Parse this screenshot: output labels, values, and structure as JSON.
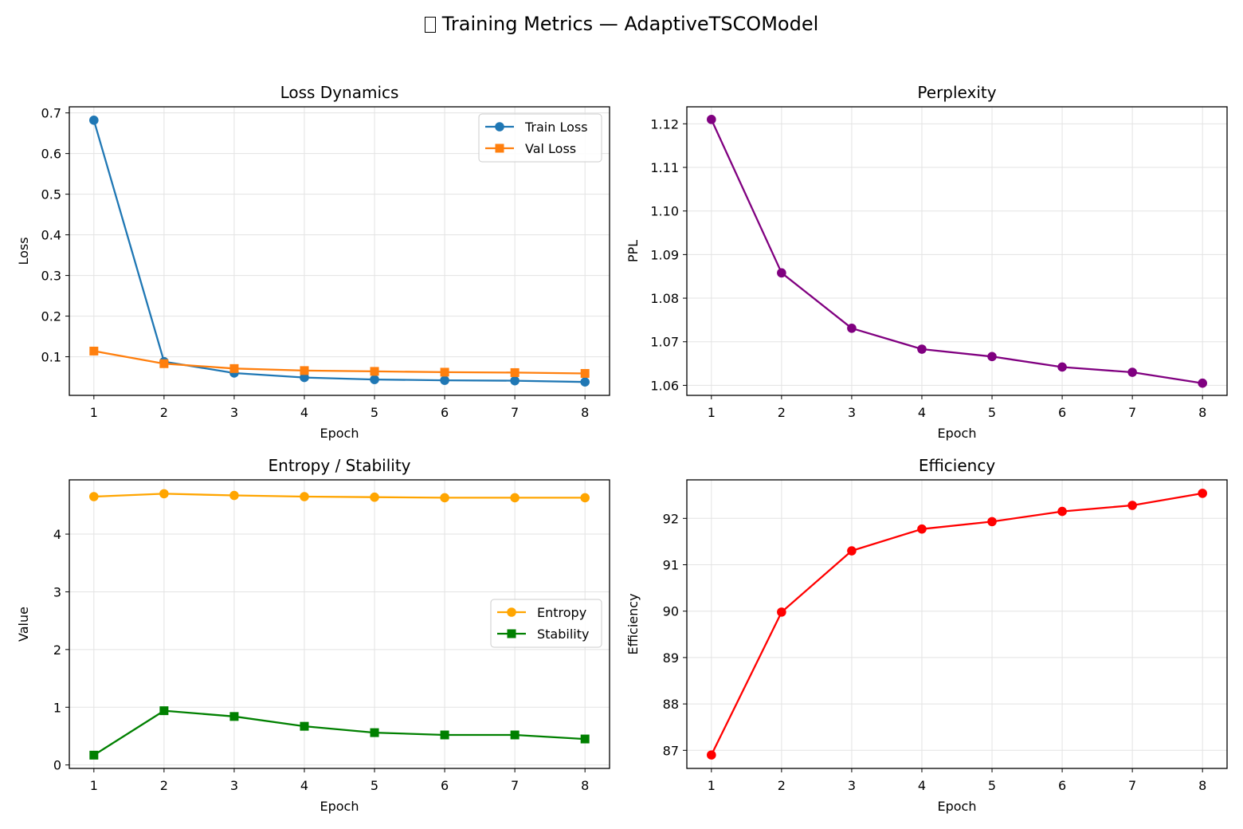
{
  "figure": {
    "title": "Training Metrics — AdaptiveTSCOModel",
    "title_icon": "chart-emoji-icon (rendered as missing-glyph box)"
  },
  "chart_data": [
    {
      "type": "line",
      "title": "Loss Dynamics",
      "xlabel": "Epoch",
      "ylabel": "Loss",
      "x": [
        1,
        2,
        3,
        4,
        5,
        6,
        7,
        8
      ],
      "xlim": [
        0.65,
        8.35
      ],
      "ylim": [
        0.005,
        0.715
      ],
      "yticks": [
        0.1,
        0.2,
        0.3,
        0.4,
        0.5,
        0.6,
        0.7
      ],
      "ytick_labels": [
        "0.1",
        "0.2",
        "0.3",
        "0.4",
        "0.5",
        "0.6",
        "0.7"
      ],
      "grid": true,
      "legend": "upper right",
      "series": [
        {
          "name": "Train Loss",
          "values": [
            0.682,
            0.088,
            0.06,
            0.049,
            0.044,
            0.042,
            0.041,
            0.038
          ],
          "color": "#1f77b4",
          "marker": "circle"
        },
        {
          "name": "Val Loss",
          "values": [
            0.114,
            0.083,
            0.071,
            0.066,
            0.064,
            0.062,
            0.061,
            0.059
          ],
          "color": "#ff7f0e",
          "marker": "square"
        }
      ]
    },
    {
      "type": "line",
      "title": "Perplexity",
      "xlabel": "Epoch",
      "ylabel": "PPL",
      "x": [
        1,
        2,
        3,
        4,
        5,
        6,
        7,
        8
      ],
      "xlim": [
        0.65,
        8.35
      ],
      "ylim": [
        1.0577,
        1.1239
      ],
      "yticks": [
        1.06,
        1.07,
        1.08,
        1.09,
        1.1,
        1.11,
        1.12
      ],
      "ytick_labels": [
        "1.06",
        "1.07",
        "1.08",
        "1.09",
        "1.10",
        "1.11",
        "1.12"
      ],
      "grid": true,
      "legend": null,
      "series": [
        {
          "name": "PPL",
          "values": [
            1.121,
            1.0858,
            1.0731,
            1.0683,
            1.0666,
            1.0642,
            1.063,
            1.0605
          ],
          "color": "#800080",
          "marker": "circle"
        }
      ]
    },
    {
      "type": "line",
      "title": "Entropy / Stability",
      "xlabel": "Epoch",
      "ylabel": "Value",
      "x": [
        1,
        2,
        3,
        4,
        5,
        6,
        7,
        8
      ],
      "xlim": [
        0.65,
        8.35
      ],
      "ylim": [
        -0.06,
        4.94
      ],
      "yticks": [
        0,
        1,
        2,
        3,
        4
      ],
      "ytick_labels": [
        "0",
        "1",
        "2",
        "3",
        "4"
      ],
      "grid": true,
      "legend": "center right",
      "series": [
        {
          "name": "Entropy",
          "values": [
            4.65,
            4.7,
            4.67,
            4.65,
            4.64,
            4.63,
            4.63,
            4.63
          ],
          "color": "#ffa500",
          "marker": "circle"
        },
        {
          "name": "Stability",
          "values": [
            0.17,
            0.94,
            0.84,
            0.67,
            0.56,
            0.52,
            0.52,
            0.45
          ],
          "color": "#008000",
          "marker": "square"
        }
      ]
    },
    {
      "type": "line",
      "title": "Efficiency",
      "xlabel": "Epoch",
      "ylabel": "Efficiency",
      "x": [
        1,
        2,
        3,
        4,
        5,
        6,
        7,
        8
      ],
      "xlim": [
        0.65,
        8.35
      ],
      "ylim": [
        86.61,
        92.83
      ],
      "yticks": [
        87,
        88,
        89,
        90,
        91,
        92
      ],
      "ytick_labels": [
        "87",
        "88",
        "89",
        "90",
        "91",
        "92"
      ],
      "grid": true,
      "legend": null,
      "series": [
        {
          "name": "Efficiency",
          "values": [
            86.9,
            89.98,
            91.3,
            91.77,
            91.93,
            92.15,
            92.28,
            92.54
          ],
          "color": "#ff0000",
          "marker": "circle"
        }
      ]
    }
  ]
}
